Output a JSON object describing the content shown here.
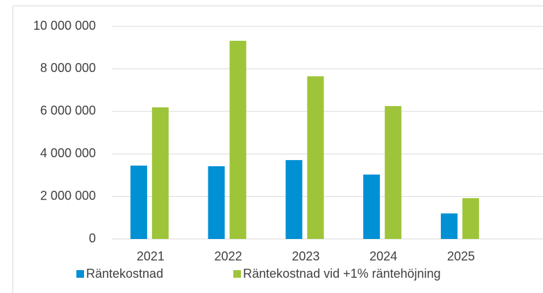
{
  "chart_data": {
    "type": "bar",
    "categories": [
      "2021",
      "2022",
      "2023",
      "2024",
      "2025"
    ],
    "series": [
      {
        "name": "Räntekostnad",
        "color": "#0090d4",
        "values": [
          3450000,
          3420000,
          3710000,
          3030000,
          1200000
        ]
      },
      {
        "name": "Räntekostnad vid +1% räntehöjning",
        "color": "#9ec53a",
        "values": [
          6190000,
          9320000,
          7650000,
          6250000,
          1920000
        ]
      }
    ],
    "ylim": [
      0,
      10000000
    ],
    "yticks": [
      0,
      {
        "value": 2000000,
        "label": "2 000 000"
      },
      {
        "value": 4000000,
        "label": "4 000 000"
      },
      {
        "value": 6000000,
        "label": "6 000 000"
      },
      {
        "value": 8000000,
        "label": "8 000 000"
      },
      {
        "value": 10000000,
        "label": "10 000 000"
      }
    ],
    "grid": true,
    "legend": "bottom"
  }
}
